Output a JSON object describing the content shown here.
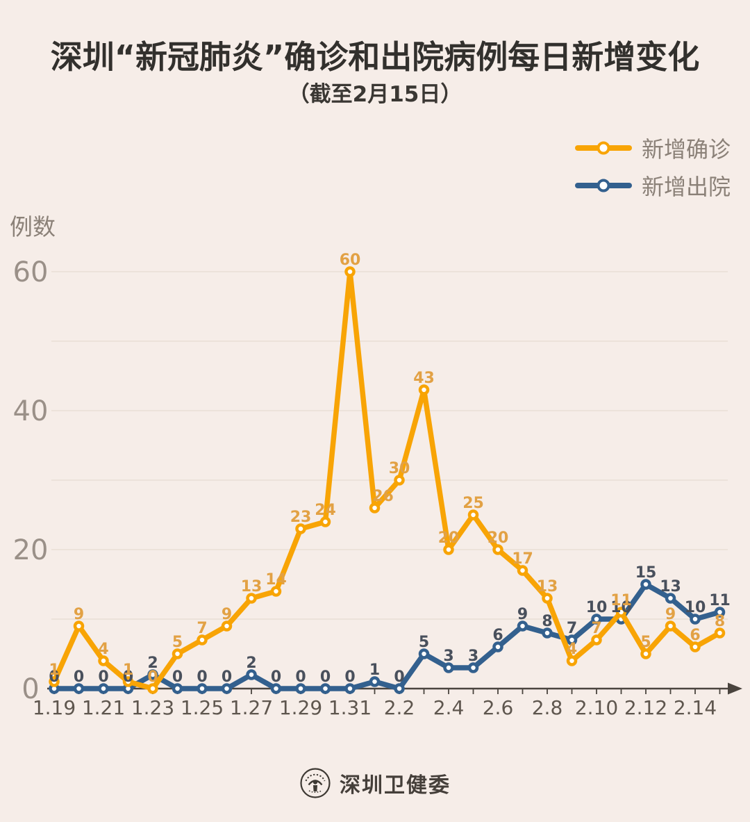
{
  "header": {
    "title": "深圳“新冠肺炎”确诊和出院病例每日新增变化",
    "subtitle": "（截至2月15日）"
  },
  "chart_data": {
    "type": "line",
    "title": "深圳“新冠肺炎”确诊和出院病例每日新增变化",
    "subtitle": "（截至2月15日）",
    "ylabel": "例数",
    "xlabel": "",
    "x": [
      "1.19",
      "1.20",
      "1.21",
      "1.22",
      "1.23",
      "1.24",
      "1.25",
      "1.26",
      "1.27",
      "1.28",
      "1.29",
      "1.30",
      "1.31",
      "2.1",
      "2.2",
      "2.3",
      "2.4",
      "2.5",
      "2.6",
      "2.7",
      "2.8",
      "2.9",
      "2.10",
      "2.11",
      "2.12",
      "2.13",
      "2.14",
      "2.15"
    ],
    "x_labeled": [
      "1.19",
      "1.21",
      "1.23",
      "1.25",
      "1.27",
      "1.29",
      "1.31",
      "2.2",
      "2.4",
      "2.6",
      "2.8",
      "2.10",
      "2.12",
      "2.14"
    ],
    "series": [
      {
        "key": "confirmed",
        "name": "新增确诊",
        "color": "#F8A405",
        "label_color": "#E2A144",
        "values": [
          1,
          9,
          4,
          1,
          0,
          5,
          7,
          9,
          13,
          14,
          23,
          24,
          60,
          26,
          30,
          43,
          20,
          25,
          20,
          17,
          13,
          4,
          7,
          11,
          5,
          9,
          6,
          8
        ]
      },
      {
        "key": "discharged",
        "name": "新增出院",
        "color": "#33608E",
        "label_color": "#49505C",
        "values": [
          0,
          0,
          0,
          0,
          2,
          0,
          0,
          0,
          2,
          0,
          0,
          0,
          0,
          1,
          0,
          5,
          3,
          3,
          6,
          9,
          8,
          7,
          10,
          10,
          15,
          13,
          10,
          11
        ]
      }
    ],
    "ylim": [
      0,
      60
    ],
    "yticks": [
      0,
      20,
      40,
      60
    ],
    "grid_interval": 10,
    "grid_on": true,
    "legend_position": "top-right"
  },
  "colors": {
    "background": "#F6EDE8",
    "title": "#32302D",
    "grid": "#E8DED6",
    "axis": "#4A443E",
    "y_tick": "#9A9088",
    "x_tick": "#5E564E",
    "legend_text": "#8B8178",
    "footer_text": "#453F3A"
  },
  "icons": {
    "footer_logo": "shenzhen-health-commission-emblem"
  },
  "footer": {
    "org": "深圳卫健委"
  }
}
